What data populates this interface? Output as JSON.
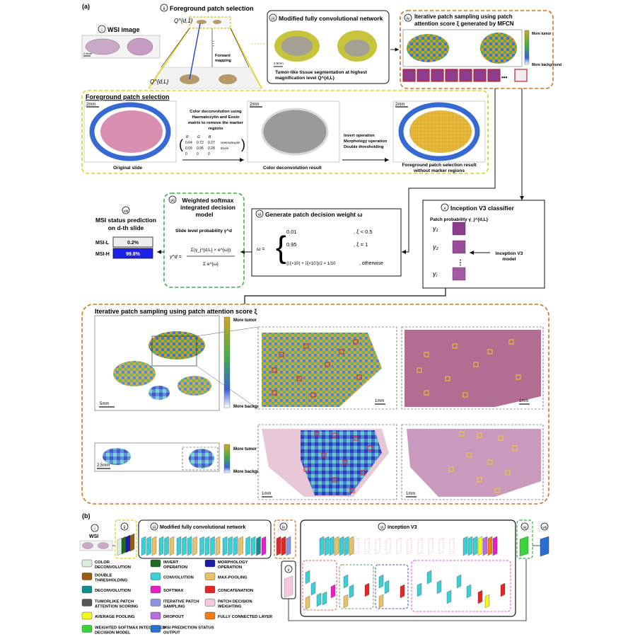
{
  "panel_a_label": "(a)",
  "panel_b_label": "(b)",
  "steps": {
    "i": {
      "num": "i",
      "title": "WSI image"
    },
    "ii": {
      "num": "ii",
      "title": "Foreground patch selection"
    },
    "iii": {
      "num": "iii",
      "title": "Modified fully convolutional network"
    },
    "iv": {
      "num": "iv",
      "title_1": "Iterative patch sampling using patch",
      "title_2": "attention score ξ generated by MFCN"
    },
    "v": {
      "num": "v",
      "title": "Inception V3 classifier"
    },
    "vi": {
      "num": "vi",
      "title": "Generate patch decision weight ω"
    },
    "vii": {
      "num": "vii",
      "title_1": "Weighted softmax",
      "title_2": "integrated decision",
      "title_3": "model"
    },
    "viii": {
      "num": "viii",
      "title_1": "MSI status prediction",
      "title_2": "on d-th slide"
    }
  },
  "top": {
    "q_top": "Q^{d,1}",
    "q_bottom": "Q^{d,L}",
    "forward_mapping_1": "Forward",
    "forward_mapping_2": "mapping",
    "wsi_scale": "2.5mm",
    "mfcn_scale": "2.5mm",
    "mfcn_caption_1": "Tumor-like tissue segmentation at highest",
    "mfcn_caption_2": "magnification level Q^{d,L}",
    "colorbar_top": "More tumor",
    "colorbar_bottom": "More background",
    "ellipsis": "•••"
  },
  "fg": {
    "title": "Foreground patch selection",
    "scale": "2mm",
    "deconv_text_1": "Color deconvolution using",
    "deconv_text_2": "Haematoxylin and Eosin",
    "deconv_text_3": "matrix to remove the marker",
    "deconv_text_4": "regions",
    "matrix_header": [
      "R",
      "G",
      "B"
    ],
    "matrix_rows": [
      [
        "0.64",
        "0.72",
        "0.27",
        "Haematoxylin"
      ],
      [
        "0.09",
        "0.95",
        "0.28",
        "Eosin"
      ],
      [
        "0",
        "0",
        "0",
        ""
      ]
    ],
    "original_label": "Original slide",
    "deconv_result_label": "Color deconvolution result",
    "ops_1": "Invert operation",
    "ops_2": "Morphology operation",
    "ops_3": "Double thresholding",
    "result_label_1": "Foreground patch selection result",
    "result_label_2": "without marker regions"
  },
  "decision": {
    "slide_prob": "Slide level probability γ^d",
    "formula_lhs": "γ^d =",
    "formula_num": "Σ(γ_j^{d,L} × e^{ω})",
    "formula_den": "Σ e^{ω}",
    "weight_lhs": "ω =",
    "case1_val": "0.01",
    "case1_cond": ", ξ < 0.5",
    "case2_val": "0.95",
    "case2_cond": ", ξ = 1",
    "case3_val": "(⌊ξ×10⌋ + ⌈ξ×10⌉)/2 × 1/10",
    "case3_cond": ", otherwise",
    "patch_prob": "Patch probability γ_j^{d,L}",
    "gamma_1": "γ₁",
    "gamma_2": "γ₂",
    "gamma_j": "γⱼ",
    "dots": "⋮",
    "inception_model_1": "Inception V3",
    "inception_model_2": "model"
  },
  "msi": {
    "rows": [
      {
        "label": "MSI-L",
        "value": "0.2%",
        "fraction": 0.002
      },
      {
        "label": "MSI-H",
        "value": "99.8%",
        "fraction": 0.998
      }
    ]
  },
  "iter": {
    "title": "Iterative patch sampling using patch attention score ξ",
    "more_tumor": "More tumor",
    "more_background": "More background",
    "scale_5mm": "5mm",
    "scale_1mm": "1mm",
    "scale_25mm": "2.5mm"
  },
  "b": {
    "wsi": "WSI",
    "mfcn_title": "Modified fully convolutional network",
    "inception_title": "Inception V3",
    "legend": [
      {
        "label_1": "COLOR",
        "label_2": "DECONVOLUTION",
        "color": "#d9eedb"
      },
      {
        "label_1": "INVERT",
        "label_2": "OPERATION",
        "color": "#1f6b1f"
      },
      {
        "label_1": "MORPHOLOGY",
        "label_2": "OPERATION",
        "color": "#1c1caa"
      },
      {
        "label_1": "DOUBLE",
        "label_2": "THRESHOLDING",
        "color": "#9a5a10"
      },
      {
        "label_1": "CONVOLUTION",
        "label_2": "",
        "color": "#3ccfd6"
      },
      {
        "label_1": "MAX-POOLING",
        "label_2": "",
        "color": "#e8c266"
      },
      {
        "label_1": "DECONVOLUTION",
        "label_2": "",
        "color": "#0f8f8f"
      },
      {
        "label_1": "SOFTMAX",
        "label_2": "",
        "color": "#e91ec9"
      },
      {
        "label_1": "CONCATENATION",
        "label_2": "",
        "color": "#e32626"
      },
      {
        "label_1": "TUMORLIKE PATCH",
        "label_2": "ATTENTION SCORING",
        "color": "#555555"
      },
      {
        "label_1": "ITERATIVE PATCH",
        "label_2": "SAMPLING",
        "color": "#8c93e6"
      },
      {
        "label_1": "PATCH DECISION",
        "label_2": "WEIGHTING",
        "color": "#f4c8de"
      },
      {
        "label_1": "AVERAGE POOLING",
        "label_2": "",
        "color": "#f4f41e"
      },
      {
        "label_1": "DROPOUT",
        "label_2": "",
        "color": "#b66ee2"
      },
      {
        "label_1": "FULLY CONNECTED LAYER",
        "label_2": "",
        "color": "#f07d1a"
      },
      {
        "label_1": "WEIGHTED SOFTMAX INTEGRATED",
        "label_2": "DECISION MODEL",
        "color": "#3cd23c"
      },
      {
        "label_1": "MSI PREDICTION STATUS",
        "label_2": "OUTPUT",
        "color": "#2a6fd0"
      }
    ]
  }
}
